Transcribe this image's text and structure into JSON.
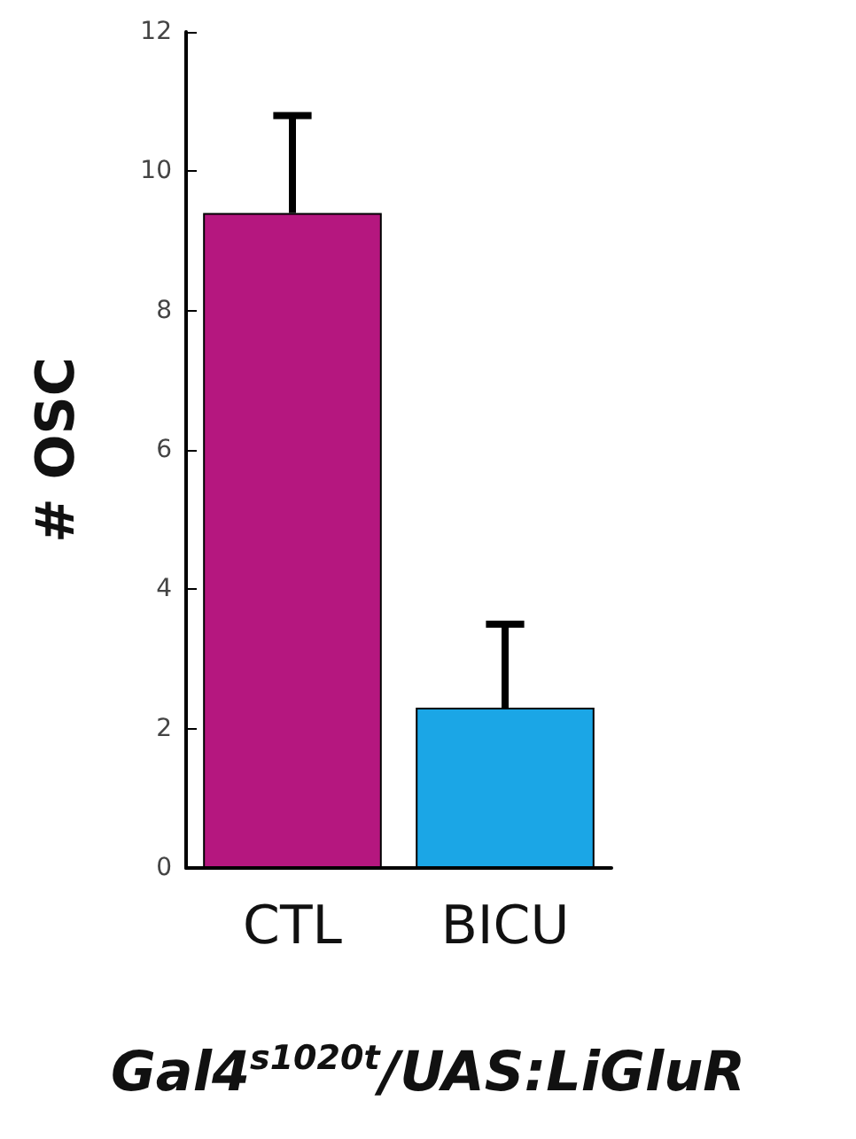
{
  "chart_data": {
    "type": "bar",
    "ylabel": "# OSC",
    "xlabel": "Gal4$^{s1020t}$/UAS:LiGluR",
    "categories": [
      "CTL",
      "BICU"
    ],
    "values": [
      9.4,
      2.3
    ],
    "colors": [
      "#b5177f",
      "#1ba6e6"
    ],
    "errors": [
      [
        9.4,
        10.8
      ],
      [
        2.3,
        3.5
      ]
    ],
    "ylim": [
      0,
      12
    ],
    "yticks": [
      0,
      2,
      4,
      6,
      8,
      10,
      12
    ],
    "grid": false
  }
}
